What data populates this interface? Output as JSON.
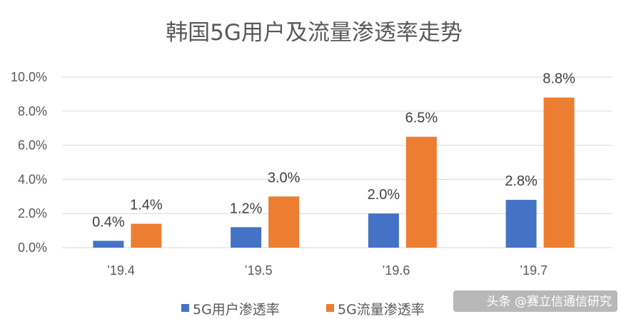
{
  "chart_data": {
    "type": "bar",
    "title": "韩国5G用户及流量渗透率走势",
    "categories": [
      "’19.4",
      "’19.5",
      "’19.6",
      "’19.7"
    ],
    "series": [
      {
        "name": "5G用户渗透率",
        "values": [
          0.4,
          1.2,
          2.0,
          2.8
        ],
        "labels": [
          "0.4%",
          "1.2%",
          "2.0%",
          "2.8%"
        ],
        "color": "#4472C4"
      },
      {
        "name": "5G流量渗透率",
        "values": [
          1.4,
          3.0,
          6.5,
          8.8
        ],
        "labels": [
          "1.4%",
          "3.0%",
          "6.5%",
          "8.8%"
        ],
        "color": "#ED7D31"
      }
    ],
    "ylim": [
      0,
      10
    ],
    "yticks": [
      "0.0%",
      "2.0%",
      "4.0%",
      "6.0%",
      "8.0%",
      "10.0%"
    ],
    "grid": true,
    "legend": "bottom"
  },
  "watermark": "头条 @赛立信通信研究"
}
